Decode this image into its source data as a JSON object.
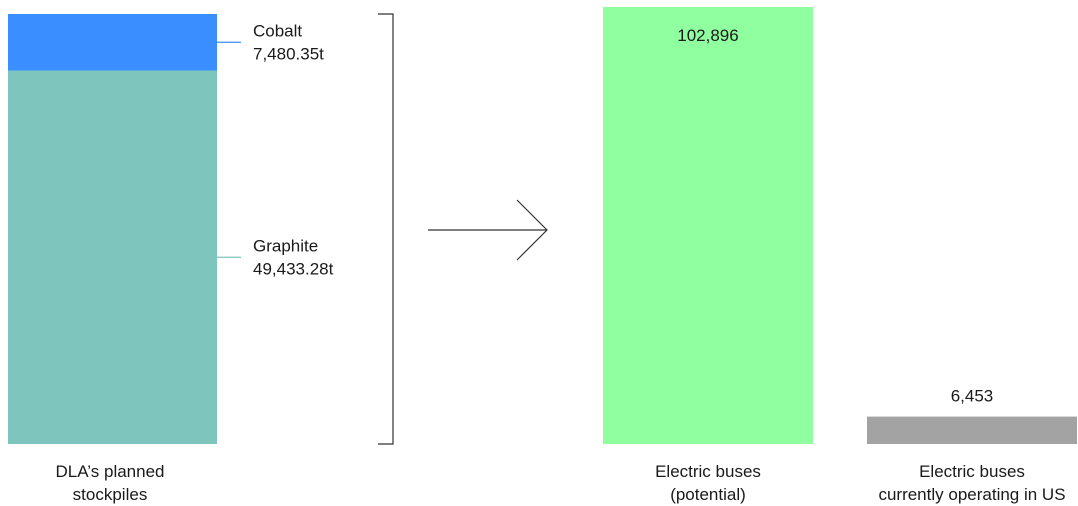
{
  "chart_data": {
    "type": "bar",
    "title": "",
    "xlabel": "",
    "ylabel": "",
    "stack": {
      "category": "DLA’s planned stockpiles",
      "unit": "t",
      "segments": [
        {
          "name": "Cobalt",
          "value": 7480.35,
          "label": "7,480.35t",
          "color": "#3a8eff"
        },
        {
          "name": "Graphite",
          "value": 49433.28,
          "label": "49,433.28t",
          "color": "#7dc5bd"
        }
      ]
    },
    "bars": [
      {
        "category": "Electric buses (potential)",
        "value": 102896,
        "label": "102,896",
        "color": "#90ff9f"
      },
      {
        "category": "Electric buses currently operating in US",
        "value": 6453,
        "label": "6,453",
        "color": "#a3a3a3"
      }
    ]
  }
}
